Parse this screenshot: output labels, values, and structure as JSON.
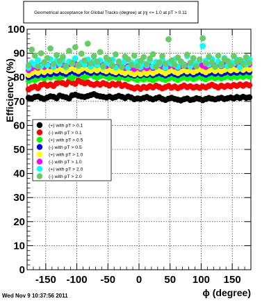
{
  "chart_data": {
    "type": "scatter",
    "title": "Geometrical acceptance for Global Tracks (degree) at |η| <= 1.0 at pT > 0.11",
    "xlabel": "ϕ (degree)",
    "ylabel": "Efficiency (%)",
    "xlim": [
      -180,
      180
    ],
    "ylim": [
      0,
      100
    ],
    "x_ticks": [
      -150,
      -100,
      -50,
      0,
      50,
      100,
      150
    ],
    "y_ticks": [
      0,
      10,
      20,
      30,
      40,
      50,
      60,
      70,
      80,
      90,
      100
    ],
    "x_tick_labels": [
      "-150",
      "-100",
      "-50",
      "0",
      "50",
      "100",
      "150"
    ],
    "y_tick_labels": [
      "0",
      "10",
      "20",
      "30",
      "40",
      "50",
      "60",
      "70",
      "80",
      "90",
      "100"
    ],
    "grid": true,
    "legend_position": "middle-left",
    "bin_width_deg": 5,
    "x": [
      -177.5,
      -172.5,
      -167.5,
      -162.5,
      -157.5,
      -152.5,
      -147.5,
      -142.5,
      -137.5,
      -132.5,
      -127.5,
      -122.5,
      -117.5,
      -112.5,
      -107.5,
      -102.5,
      -97.5,
      -92.5,
      -87.5,
      -82.5,
      -77.5,
      -72.5,
      -67.5,
      -62.5,
      -57.5,
      -52.5,
      -47.5,
      -42.5,
      -37.5,
      -32.5,
      -27.5,
      -22.5,
      -17.5,
      -12.5,
      -7.5,
      -2.5,
      2.5,
      7.5,
      12.5,
      17.5,
      22.5,
      27.5,
      32.5,
      37.5,
      42.5,
      47.5,
      52.5,
      57.5,
      62.5,
      67.5,
      72.5,
      77.5,
      82.5,
      87.5,
      92.5,
      97.5,
      102.5,
      107.5,
      112.5,
      117.5,
      122.5,
      127.5,
      132.5,
      137.5,
      142.5,
      147.5,
      152.5,
      157.5,
      162.5,
      167.5,
      172.5,
      177.5
    ],
    "series": [
      {
        "name": "(+) with pT > 0.1",
        "color": "#000000",
        "values": [
          71.5,
          71.2,
          71.8,
          72.0,
          71.4,
          71.0,
          71.6,
          72.1,
          71.9,
          71.3,
          72.4,
          72.0,
          71.7,
          71.2,
          72.5,
          72.8,
          72.3,
          72.0,
          71.8,
          72.2,
          72.6,
          73.0,
          72.4,
          72.1,
          71.9,
          71.6,
          72.0,
          71.5,
          71.8,
          72.3,
          71.9,
          71.4,
          72.0,
          71.6,
          70.9,
          71.2,
          71.0,
          71.4,
          71.8,
          71.2,
          70.8,
          71.3,
          71.7,
          71.0,
          70.6,
          71.1,
          71.5,
          71.0,
          70.7,
          70.4,
          70.9,
          71.2,
          70.6,
          70.8,
          71.3,
          71.0,
          70.5,
          71.0,
          71.4,
          71.1,
          70.8,
          71.2,
          71.5,
          71.0,
          71.3,
          71.6,
          71.2,
          71.8,
          71.4,
          71.9,
          71.5,
          71.7
        ]
      },
      {
        "name": "(-) with pT > 0.1",
        "color": "#ff0000",
        "values": [
          75.0,
          75.8,
          76.2,
          75.5,
          76.8,
          77.2,
          76.5,
          77.0,
          76.4,
          77.5,
          78.0,
          77.6,
          77.1,
          78.4,
          77.8,
          77.3,
          78.6,
          78.0,
          77.5,
          77.9,
          77.2,
          76.8,
          77.4,
          76.9,
          77.6,
          77.1,
          76.6,
          77.3,
          76.8,
          77.5,
          76.4,
          76.9,
          76.2,
          75.8,
          75.3,
          75.9,
          75.2,
          76.0,
          75.6,
          76.3,
          75.8,
          76.5,
          76.0,
          75.4,
          75.9,
          76.4,
          75.7,
          76.2,
          75.5,
          76.0,
          76.6,
          75.9,
          76.3,
          75.7,
          76.1,
          75.6,
          76.2,
          75.8,
          76.4,
          76.9,
          76.3,
          75.8,
          76.5,
          76.0,
          76.6,
          76.2,
          76.8,
          76.4,
          77.0,
          76.5,
          77.1,
          76.7
        ]
      },
      {
        "name": "(+) with pT > 0.5",
        "color": "#00ff00",
        "values": [
          78.5,
          79.2,
          78.8,
          79.6,
          80.1,
          79.5,
          80.4,
          79.9,
          80.6,
          80.2,
          79.8,
          80.5,
          81.0,
          80.3,
          79.7,
          80.8,
          81.2,
          80.6,
          80.0,
          80.7,
          81.1,
          80.4,
          79.9,
          80.5,
          80.9,
          80.3,
          79.8,
          80.4,
          80.0,
          79.6,
          80.2,
          79.7,
          79.3,
          79.9,
          79.4,
          78.9,
          79.5,
          79.1,
          79.7,
          79.2,
          78.8,
          79.4,
          79.9,
          79.3,
          78.9,
          79.5,
          80.0,
          79.4,
          78.9,
          79.6,
          80.1,
          79.5,
          79.9,
          79.3,
          79.8,
          80.3,
          79.7,
          79.2,
          79.8,
          80.2,
          79.6,
          80.1,
          79.5,
          80.0,
          80.5,
          79.9,
          80.4,
          80.0,
          80.6,
          80.2,
          80.8,
          80.3
        ]
      },
      {
        "name": "(-) with pT > 0.5",
        "color": "#0000ff",
        "values": [
          80.0,
          80.6,
          81.2,
          80.8,
          81.5,
          81.0,
          81.8,
          81.3,
          82.0,
          81.6,
          82.3,
          81.8,
          81.4,
          82.1,
          82.6,
          82.0,
          81.5,
          82.2,
          82.8,
          82.3,
          81.8,
          82.4,
          81.9,
          82.5,
          82.0,
          81.6,
          82.2,
          81.7,
          81.3,
          81.9,
          81.4,
          81.0,
          81.6,
          81.1,
          80.7,
          81.3,
          80.8,
          81.4,
          81.0,
          81.5,
          80.9,
          81.4,
          81.8,
          81.3,
          80.8,
          81.4,
          81.9,
          81.3,
          80.9,
          81.5,
          82.0,
          81.4,
          81.8,
          81.2,
          81.7,
          82.2,
          81.6,
          81.1,
          81.7,
          82.1,
          81.5,
          82.0,
          81.4,
          81.9,
          82.4,
          81.8,
          82.3,
          81.9,
          82.5,
          82.0,
          82.6,
          82.1
        ]
      },
      {
        "name": "(+) with pT > 1.0",
        "color": "#ffff00",
        "values": [
          81.0,
          81.8,
          82.4,
          81.9,
          82.8,
          82.2,
          83.0,
          82.5,
          83.3,
          82.8,
          83.6,
          83.0,
          82.5,
          83.3,
          83.9,
          83.2,
          82.6,
          83.4,
          84.0,
          83.4,
          82.8,
          83.5,
          82.9,
          83.6,
          83.0,
          82.5,
          83.2,
          82.6,
          82.1,
          82.8,
          82.2,
          81.7,
          82.4,
          81.8,
          81.3,
          82.0,
          81.4,
          82.1,
          81.6,
          82.3,
          81.7,
          82.4,
          82.9,
          82.3,
          81.7,
          82.4,
          83.0,
          82.3,
          81.8,
          82.5,
          83.1,
          82.4,
          82.9,
          82.2,
          82.8,
          83.4,
          82.7,
          82.1,
          82.8,
          83.3,
          82.6,
          83.2,
          82.5,
          83.1,
          83.6,
          82.9,
          83.5,
          83.0,
          83.7,
          83.1,
          83.8,
          83.2
        ]
      },
      {
        "name": "(-) with pT > 1.0",
        "color": "#ff00ff",
        "values": [
          83.0,
          83.8,
          84.5,
          84.0,
          84.9,
          84.3,
          85.2,
          84.6,
          85.5,
          85.0,
          85.8,
          85.2,
          84.7,
          85.5,
          86.1,
          85.4,
          84.8,
          85.6,
          86.3,
          85.6,
          85.0,
          85.7,
          85.1,
          85.8,
          85.2,
          84.7,
          85.4,
          84.8,
          84.3,
          85.0,
          84.4,
          83.9,
          84.6,
          84.0,
          83.5,
          84.2,
          83.6,
          84.3,
          83.8,
          84.5,
          83.9,
          84.6,
          85.1,
          84.5,
          83.9,
          84.6,
          85.2,
          84.5,
          84.0,
          84.7,
          85.3,
          84.6,
          85.1,
          84.4,
          85.0,
          85.6,
          84.9,
          84.3,
          85.0,
          85.5,
          84.8,
          85.4,
          84.7,
          85.3,
          85.8,
          85.1,
          85.7,
          85.2,
          85.9,
          85.3,
          86.0,
          85.4
        ]
      },
      {
        "name": "(+) with pT > 2.0",
        "color": "#00ffff",
        "values": [
          84.0,
          86.0,
          85.2,
          87.1,
          84.6,
          86.3,
          85.0,
          87.5,
          84.4,
          86.8,
          85.5,
          87.2,
          84.2,
          86.5,
          85.7,
          87.9,
          84.8,
          86.1,
          85.3,
          87.4,
          84.5,
          86.9,
          85.1,
          87.0,
          84.3,
          86.2,
          85.6,
          87.3,
          84.1,
          86.6,
          85.4,
          86.8,
          84.0,
          86.0,
          85.2,
          86.5,
          84.2,
          85.8,
          85.0,
          86.9,
          84.5,
          86.3,
          85.4,
          87.0,
          84.0,
          86.1,
          85.6,
          87.4,
          84.3,
          86.4,
          85.1,
          88.8,
          84.6,
          86.2,
          85.5,
          87.1,
          93.0,
          86.8,
          85.3,
          87.6,
          84.4,
          86.5,
          85.0,
          88.0,
          84.7,
          86.2,
          85.8,
          87.3,
          84.2,
          86.7,
          85.4,
          87.5
        ]
      },
      {
        "name": "(-) with pT > 2.0",
        "color": "#66cc66",
        "values": [
          85.0,
          91.5,
          89.0,
          84.5,
          90.0,
          86.2,
          88.0,
          92.0,
          85.5,
          89.2,
          86.8,
          88.5,
          84.8,
          91.0,
          86.0,
          92.5,
          85.2,
          89.8,
          87.0,
          94.0,
          85.8,
          88.8,
          86.5,
          90.5,
          84.7,
          88.2,
          87.2,
          85.0,
          89.5,
          86.4,
          84.2,
          88.6,
          87.5,
          85.2,
          89.0,
          84.6,
          86.8,
          88.4,
          85.4,
          87.8,
          89.6,
          84.4,
          86.2,
          88.8,
          85.6,
          95.8,
          87.0,
          85.2,
          88.2,
          86.6,
          84.8,
          89.4,
          86.0,
          88.0,
          84.6,
          87.4,
          96.2,
          85.8,
          88.6,
          86.2,
          84.4,
          89.0,
          85.5,
          87.6,
          86.8,
          85.0,
          88.8,
          86.4,
          87.2,
          85.6,
          88.4,
          86.0
        ]
      }
    ]
  },
  "footer": {
    "date": "Wed Nov  9 10:37:56 2011"
  }
}
